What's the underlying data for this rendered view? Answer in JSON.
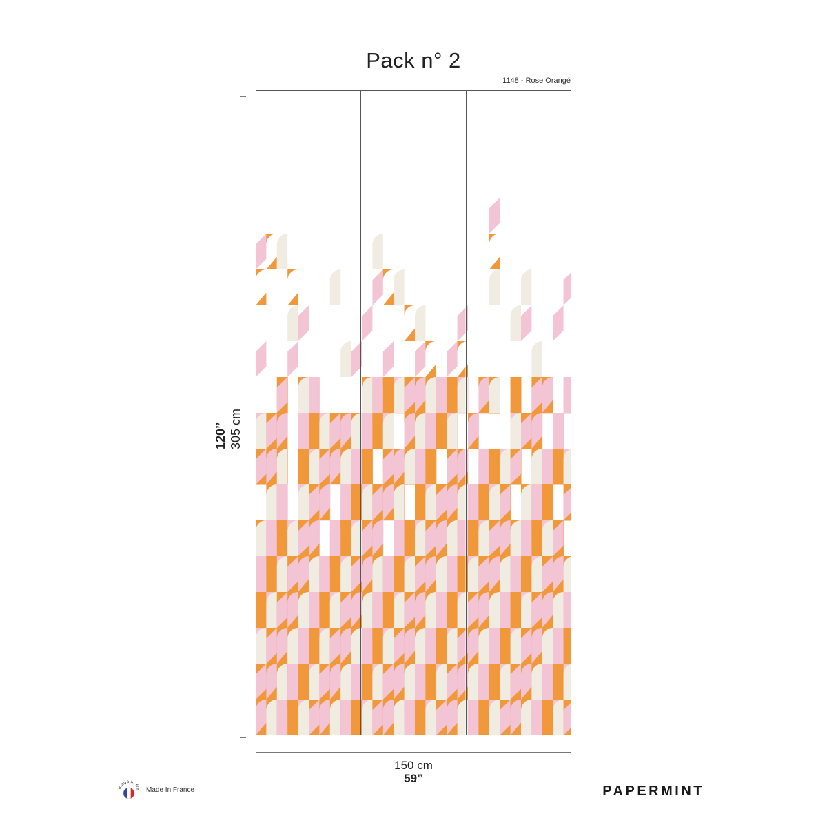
{
  "title": "Pack n° 2",
  "reference": "1148 - Rose Orangé",
  "dimensions": {
    "height_in": "120’’",
    "height_cm": "305 cm",
    "width_cm": "150 cm",
    "width_in": "59’’"
  },
  "badge_text": "made in france",
  "made_in_france": "Made In France",
  "brand": "PAPERMINT",
  "colors": {
    "orange": "#f0983a",
    "pink": "#f2c4d4",
    "cream": "#f1ece2",
    "outline": "#555555"
  },
  "panels": 3
}
